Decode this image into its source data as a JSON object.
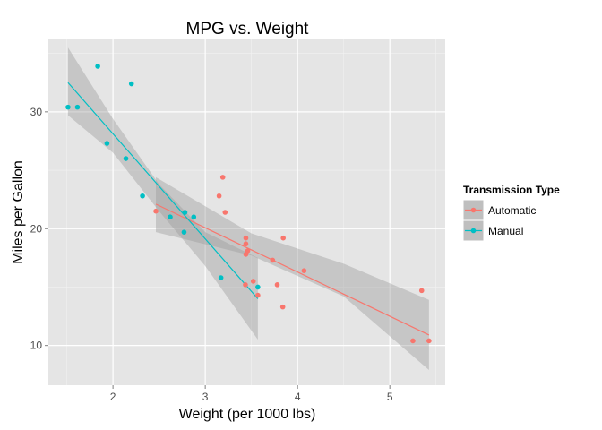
{
  "chart_data": {
    "type": "scatter",
    "title": "MPG vs. Weight",
    "xlabel": "Weight (per 1000 lbs)",
    "ylabel": "Miles per Gallon",
    "xlim": [
      1.3,
      5.6
    ],
    "ylim": [
      6.6,
      36.2
    ],
    "xticks": [
      2,
      3,
      4,
      5
    ],
    "yticks": [
      10,
      20,
      30
    ],
    "grid": true,
    "legend": {
      "title": "Transmission Type",
      "position": "right"
    },
    "series": [
      {
        "name": "Automatic",
        "color": "#F8766D",
        "points": [
          [
            3.215,
            21.4
          ],
          [
            3.44,
            18.7
          ],
          [
            3.46,
            18.1
          ],
          [
            3.57,
            14.3
          ],
          [
            3.19,
            24.4
          ],
          [
            3.15,
            22.8
          ],
          [
            3.44,
            19.2
          ],
          [
            3.44,
            17.8
          ],
          [
            4.07,
            16.4
          ],
          [
            3.73,
            17.3
          ],
          [
            3.78,
            15.2
          ],
          [
            5.25,
            10.4
          ],
          [
            5.424,
            10.4
          ],
          [
            5.345,
            14.7
          ],
          [
            2.465,
            21.5
          ],
          [
            3.52,
            15.5
          ],
          [
            3.435,
            15.2
          ],
          [
            3.84,
            13.3
          ],
          [
            3.845,
            19.2
          ]
        ],
        "fit": {
          "x": [
            2.465,
            5.424
          ],
          "y": [
            22.1,
            10.9
          ]
        },
        "band": {
          "x": [
            2.465,
            3.5,
            4.5,
            5.424
          ],
          "lower": [
            19.7,
            17.7,
            14.2,
            7.9
          ],
          "upper": [
            24.4,
            19.6,
            17.0,
            13.9
          ]
        }
      },
      {
        "name": "Manual",
        "color": "#00BFC4",
        "points": [
          [
            2.62,
            21.0
          ],
          [
            2.875,
            21.0
          ],
          [
            2.32,
            22.8
          ],
          [
            2.2,
            32.4
          ],
          [
            1.615,
            30.4
          ],
          [
            1.835,
            33.9
          ],
          [
            1.935,
            27.3
          ],
          [
            2.14,
            26.0
          ],
          [
            1.513,
            30.4
          ],
          [
            3.17,
            15.8
          ],
          [
            2.77,
            19.7
          ],
          [
            2.78,
            21.4
          ],
          [
            3.57,
            15.0
          ]
        ],
        "fit": {
          "x": [
            1.513,
            3.57
          ],
          "y": [
            32.5,
            14.0
          ]
        },
        "band": {
          "x": [
            1.513,
            2.0,
            2.5,
            3.0,
            3.57
          ],
          "lower": [
            29.7,
            26.5,
            21.5,
            16.8,
            10.5
          ],
          "upper": [
            35.5,
            29.4,
            23.8,
            19.7,
            17.5
          ]
        }
      }
    ]
  }
}
